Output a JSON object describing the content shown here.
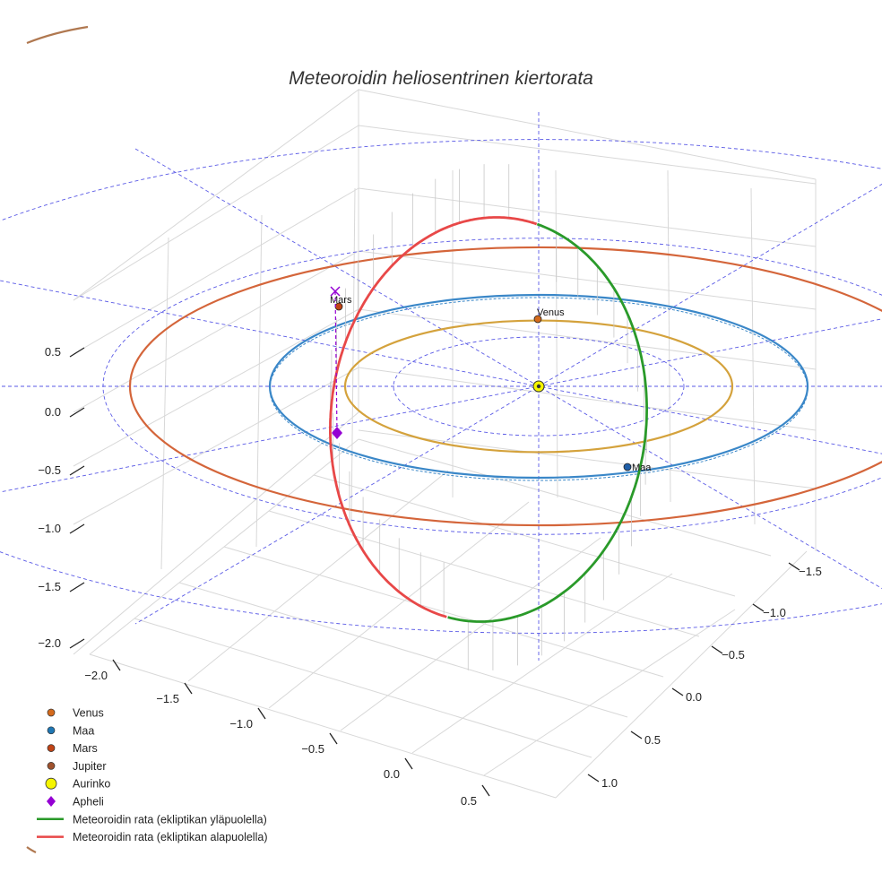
{
  "chart_data": {
    "type": "line",
    "title": "Meteoroidin heliosentrinen kiertorata",
    "axes": {
      "x_ticks": [
        "−1.5",
        "−1.0",
        "−0.5",
        "0.0",
        "0.5",
        "1.0"
      ],
      "x_values": [
        -1.5,
        -1.0,
        -0.5,
        0.0,
        0.5,
        1.0
      ],
      "y_ticks": [
        "−2.0",
        "−1.5",
        "−1.0",
        "−0.5",
        "0.0",
        "0.5"
      ],
      "y_values": [
        -2.0,
        -1.5,
        -1.0,
        -0.5,
        0.0,
        0.5
      ],
      "z_ticks": [
        "−2.0",
        "−1.5",
        "−1.0",
        "−0.5",
        "0.0",
        "0.5"
      ],
      "z_values": [
        -2.0,
        -1.5,
        -1.0,
        -0.5,
        0.0,
        0.5
      ],
      "grid": true
    },
    "orbits": [
      {
        "name": "Venus",
        "radius": 0.72,
        "color": "#d4a23c"
      },
      {
        "name": "Maa",
        "radius": 1.0,
        "color": "#3a87c8"
      },
      {
        "name": "Mars",
        "radius": 1.52,
        "color": "#d4653a"
      }
    ],
    "bodies": [
      {
        "name": "Venus",
        "label": "Venus",
        "color": "#d46a1c"
      },
      {
        "name": "Maa",
        "label": "Maa",
        "color": "#1f5fa8"
      },
      {
        "name": "Mars",
        "label": "Mars",
        "color": "#c14416"
      },
      {
        "name": "Aurinko",
        "color": "#f5f500"
      }
    ],
    "apheli": {
      "name": "Apheli",
      "color": "#9400d3"
    },
    "meteoroid": {
      "above": {
        "name": "Meteoroidin rata (ekliptikan yläpuolella)",
        "color": "#2a9a2a"
      },
      "below": {
        "name": "Meteoroidin rata (ekliptikan alapuolella)",
        "color": "#e84848"
      }
    },
    "legend": {
      "position": "bottom-left",
      "entries": [
        {
          "label": "Venus",
          "marker": "circle",
          "color": "#d46a1c"
        },
        {
          "label": "Maa",
          "marker": "circle",
          "color": "#1f77b4"
        },
        {
          "label": "Mars",
          "marker": "circle",
          "color": "#c14416"
        },
        {
          "label": "Jupiter",
          "marker": "circle",
          "color": "#a0522d"
        },
        {
          "label": "Aurinko",
          "marker": "circle-large",
          "color": "#f5f500"
        },
        {
          "label": "Apheli",
          "marker": "diamond",
          "color": "#9400d3"
        },
        {
          "label": "Meteoroidin rata (ekliptikan yläpuolella)",
          "marker": "line",
          "color": "#2a9a2a"
        },
        {
          "label": "Meteoroidin rata (ekliptikan alapuolella)",
          "marker": "line",
          "color": "#e84848"
        }
      ]
    }
  }
}
